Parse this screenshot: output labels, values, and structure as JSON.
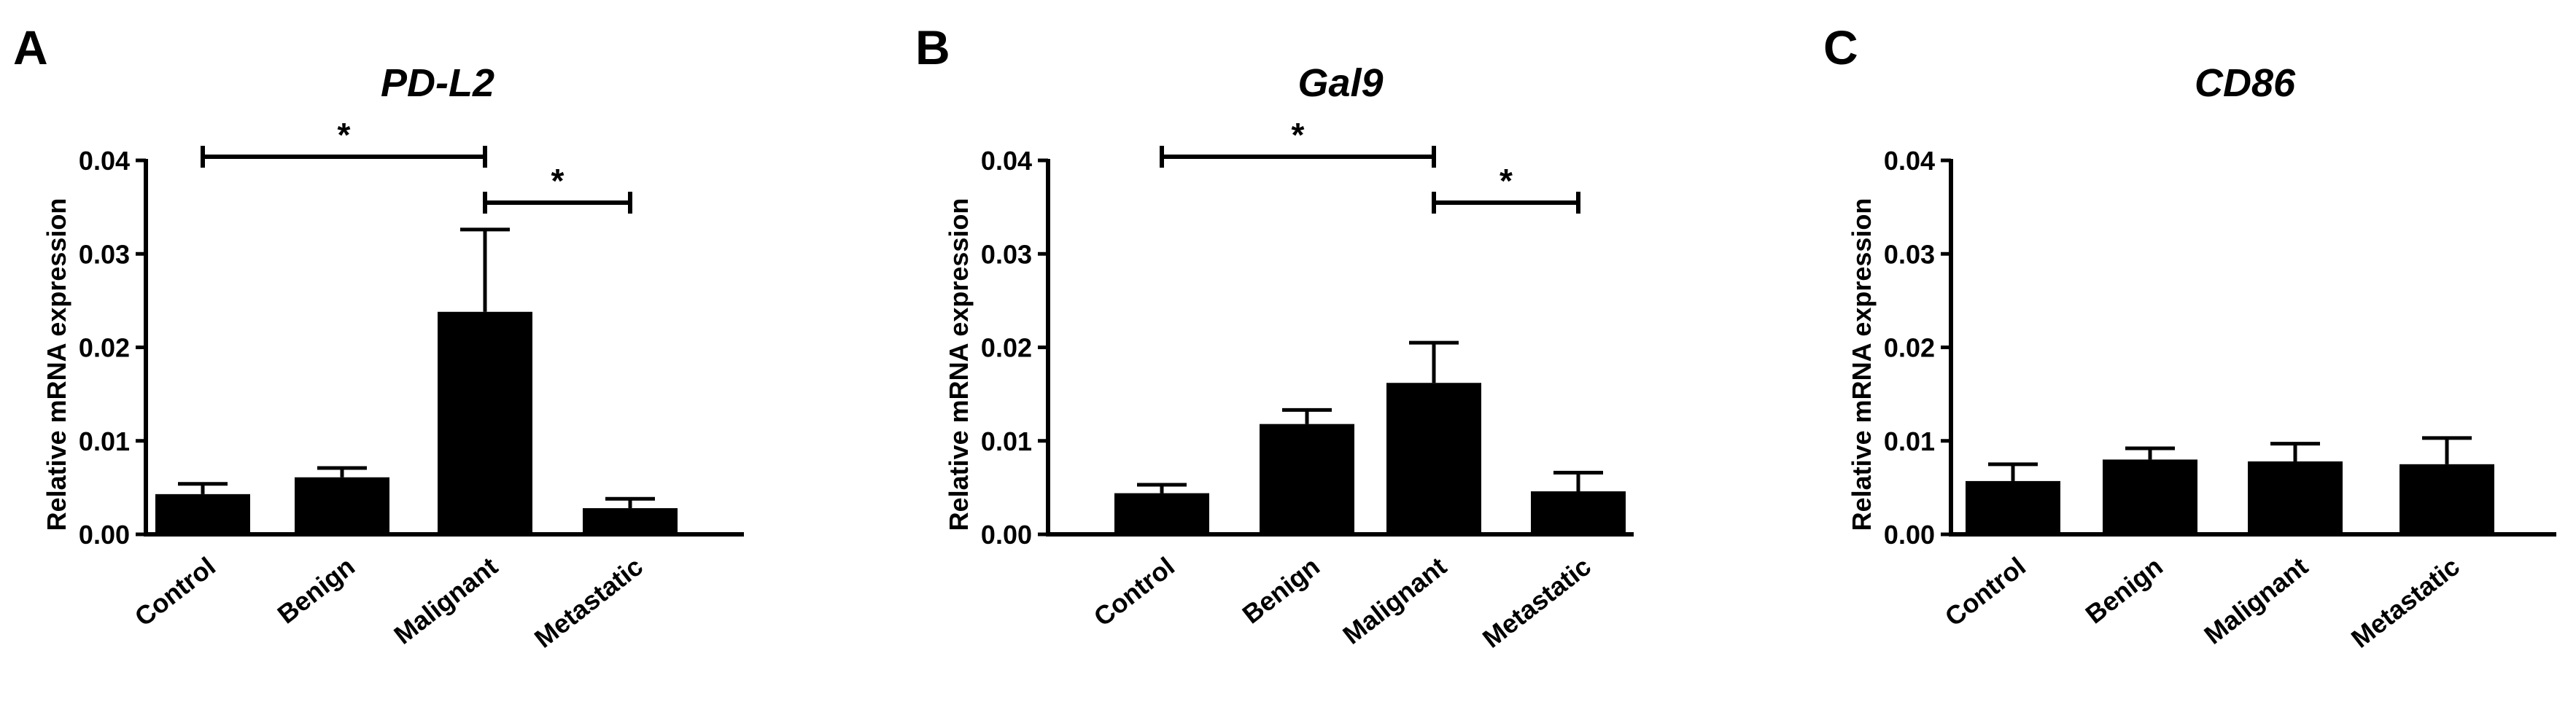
{
  "figure": {
    "panel_labels": [
      "A",
      "B",
      "C"
    ]
  },
  "chart_data": [
    {
      "type": "bar",
      "panel": "A",
      "title": "PD-L2",
      "ylabel": "Relative mRNA expression",
      "xlabel": "",
      "categories": [
        "Control",
        "Benign",
        "Malignant",
        "Metastatic"
      ],
      "values": [
        0.0043,
        0.0061,
        0.0238,
        0.0028
      ],
      "errors": [
        0.0011,
        0.001,
        0.0088,
        0.001
      ],
      "ylim": [
        0,
        0.04
      ],
      "yticks": [
        "0.00",
        "0.01",
        "0.02",
        "0.03",
        "0.04"
      ],
      "significance": [
        {
          "from": "Control",
          "to": "Malignant",
          "label": "*"
        },
        {
          "from": "Malignant",
          "to": "Metastatic",
          "label": "*"
        }
      ],
      "grid": false,
      "color": "#000000"
    },
    {
      "type": "bar",
      "panel": "B",
      "title": "Gal9",
      "ylabel": "Relative mRNA expression",
      "xlabel": "",
      "categories": [
        "Control",
        "Benign",
        "Malignant",
        "Metastatic"
      ],
      "values": [
        0.0044,
        0.0118,
        0.0162,
        0.0046
      ],
      "errors": [
        0.0009,
        0.0015,
        0.0043,
        0.002
      ],
      "ylim": [
        0,
        0.04
      ],
      "yticks": [
        "0.00",
        "0.01",
        "0.02",
        "0.03",
        "0.04"
      ],
      "significance": [
        {
          "from": "Control",
          "to": "Malignant",
          "label": "*"
        },
        {
          "from": "Malignant",
          "to": "Metastatic",
          "label": "*"
        }
      ],
      "grid": false,
      "color": "#000000"
    },
    {
      "type": "bar",
      "panel": "C",
      "title": "CD86",
      "ylabel": "Relative mRNA expression",
      "xlabel": "",
      "categories": [
        "Control",
        "Benign",
        "Malignant",
        "Metastatic"
      ],
      "values": [
        0.0057,
        0.008,
        0.0078,
        0.0075
      ],
      "errors": [
        0.0018,
        0.0012,
        0.0019,
        0.0028
      ],
      "ylim": [
        0,
        0.04
      ],
      "yticks": [
        "0.00",
        "0.01",
        "0.02",
        "0.03",
        "0.04"
      ],
      "significance": [],
      "grid": false,
      "color": "#000000"
    }
  ]
}
